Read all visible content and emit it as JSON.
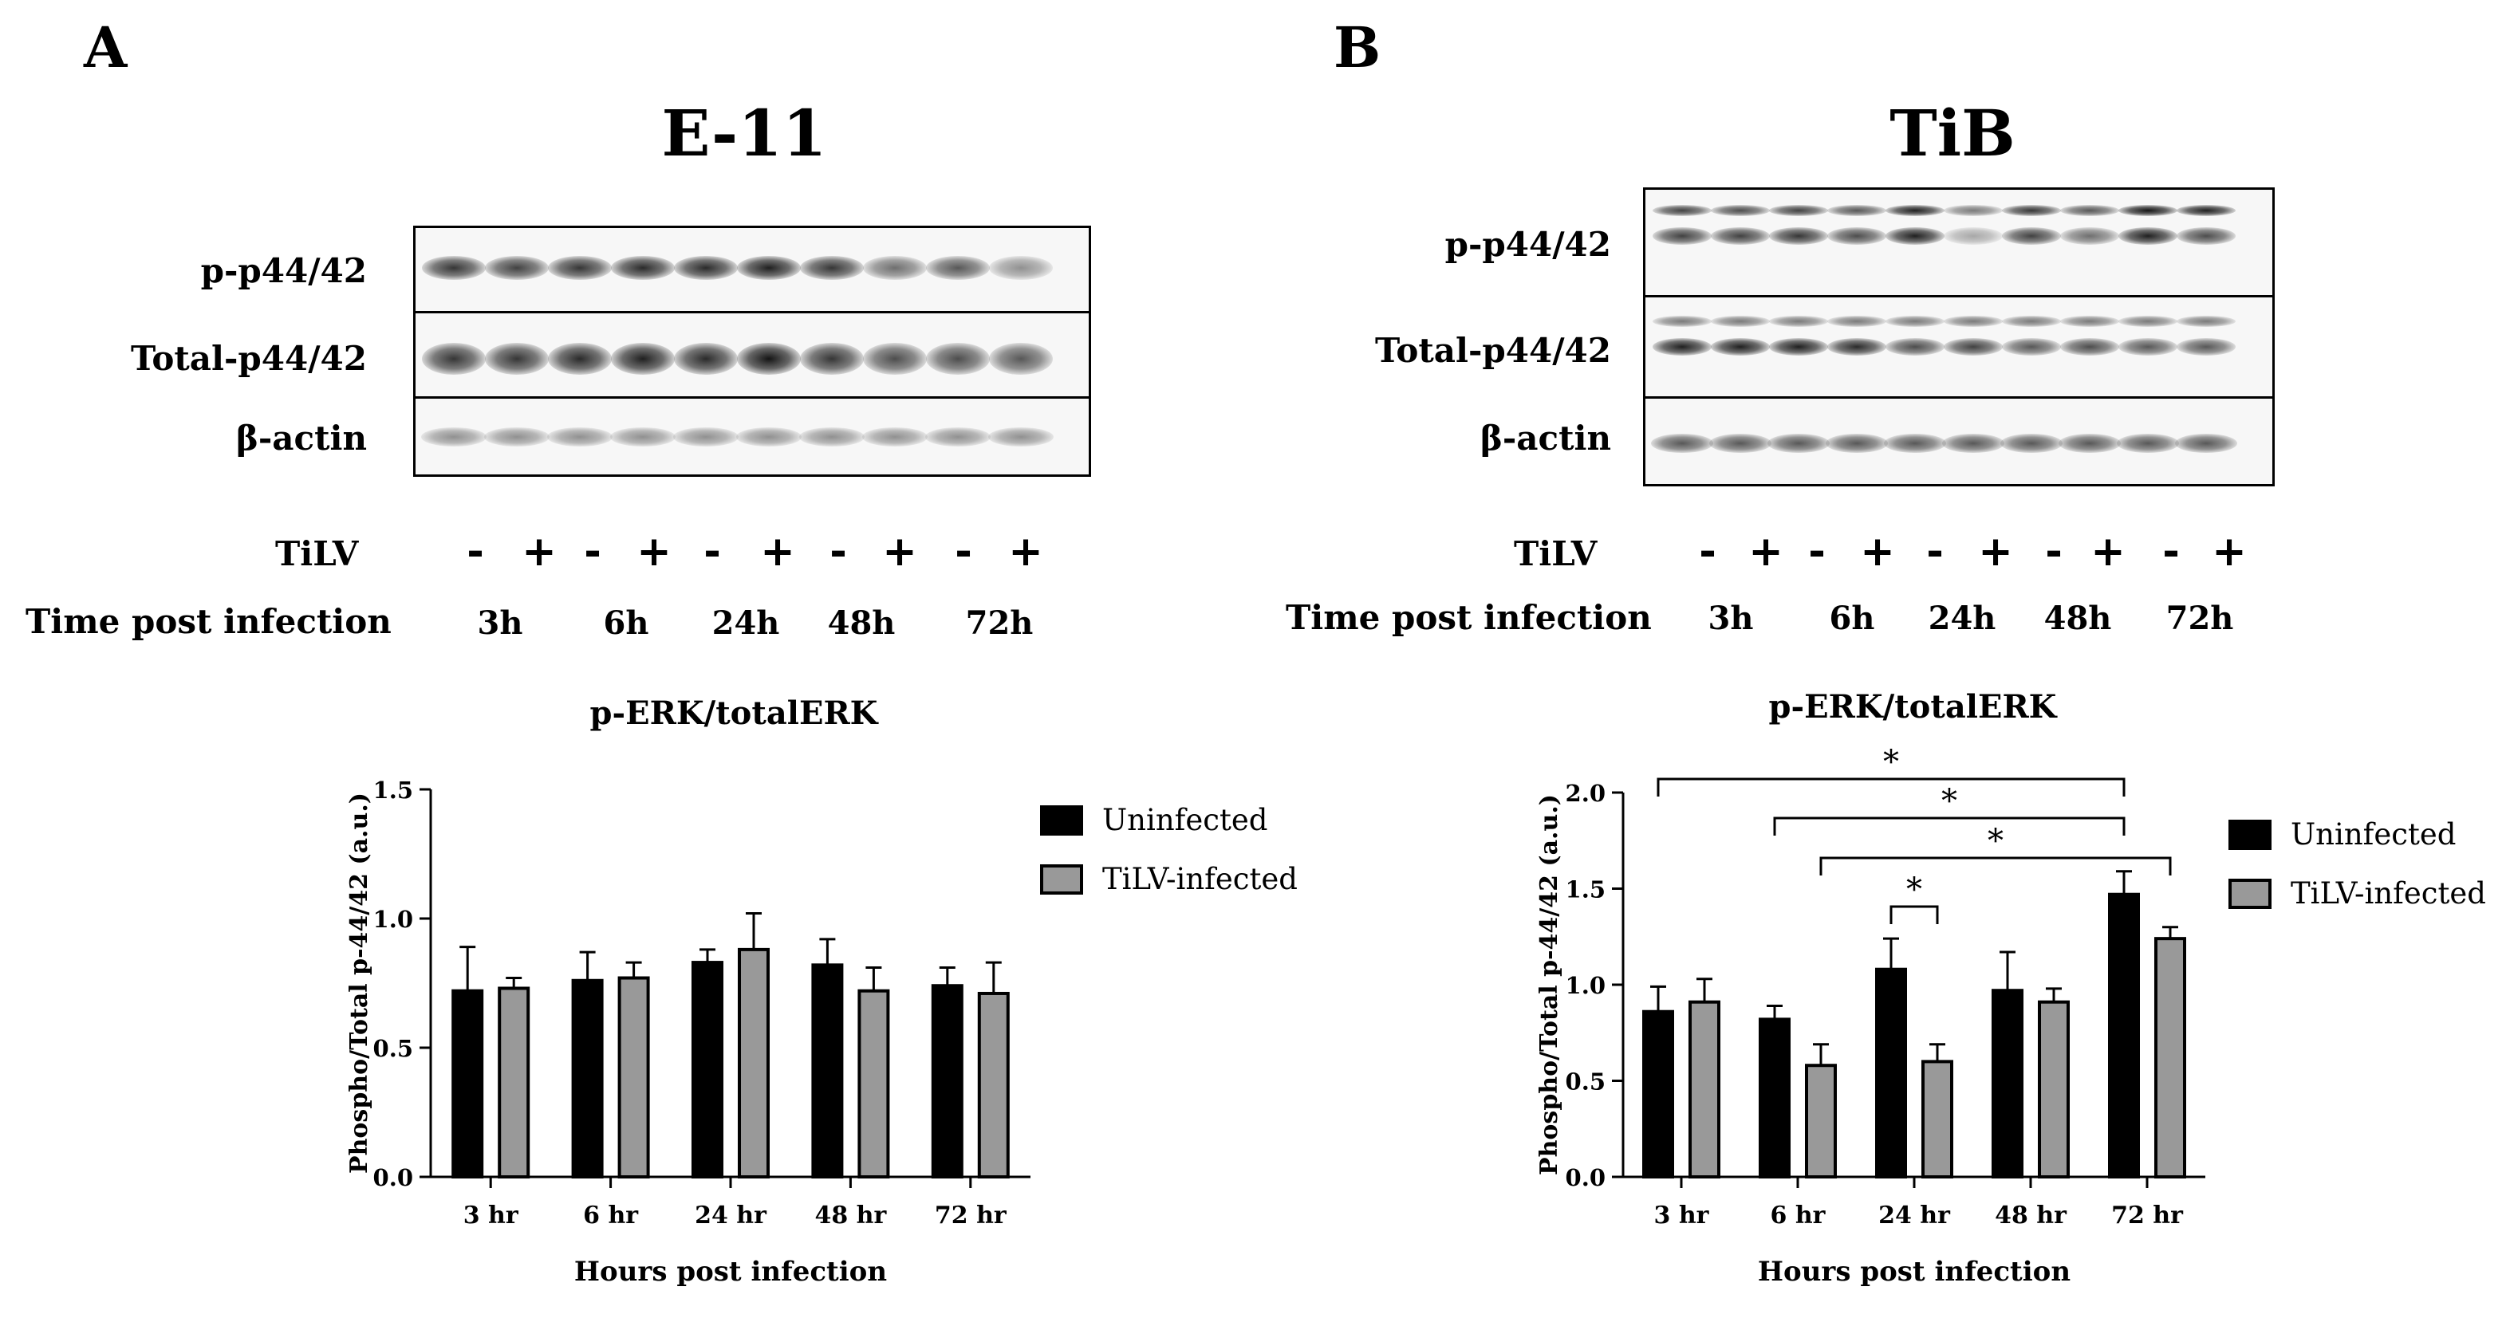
{
  "panels": {
    "a": {
      "letter": "A",
      "blot_title": "E-11",
      "rows": [
        "p-p44/42",
        "Total-p44/42",
        "β-actin"
      ],
      "tilv_label": "TiLV",
      "signs": [
        "-",
        "+",
        "-",
        "+",
        "-",
        "+",
        "-",
        "+",
        "-",
        "+"
      ],
      "time_label": "Time post infection",
      "times": [
        "3h",
        "6h",
        "24h",
        "48h",
        "72h"
      ]
    },
    "b": {
      "letter": "B",
      "blot_title": "TiB",
      "rows": [
        "p-p44/42",
        "Total-p44/42",
        "β-actin"
      ],
      "tilv_label": "TiLV",
      "signs": [
        "-",
        "+",
        "-",
        "+",
        "-",
        "+",
        "-",
        "+",
        "-",
        "+"
      ],
      "time_label": "Time post infection",
      "times": [
        "3h",
        "6h",
        "24h",
        "48h",
        "72h"
      ]
    }
  },
  "chart_data": [
    {
      "type": "bar",
      "panel": "A",
      "title": "p-ERK/totalERK",
      "xlabel": "Hours post infection",
      "ylabel": "Phospho/Total p-44/42 (a.u.)",
      "ylim": [
        0,
        1.5
      ],
      "yticks": [
        "0.0",
        "0.5",
        "1.0",
        "1.5"
      ],
      "yticks_values": [
        0,
        0.5,
        1.0,
        1.5
      ],
      "categories": [
        "3 hr",
        "6 hr",
        "24 hr",
        "48 hr",
        "72 hr"
      ],
      "series": [
        {
          "name": "Uninfected",
          "color": "#000000",
          "values": [
            0.72,
            0.76,
            0.83,
            0.82,
            0.74
          ],
          "errors": [
            0.17,
            0.11,
            0.05,
            0.1,
            0.07
          ]
        },
        {
          "name": "TiLV-infected",
          "color": "#999999",
          "values": [
            0.73,
            0.77,
            0.88,
            0.72,
            0.71
          ],
          "errors": [
            0.04,
            0.06,
            0.14,
            0.09,
            0.12
          ]
        }
      ],
      "significance": []
    },
    {
      "type": "bar",
      "panel": "B",
      "title": "p-ERK/totalERK",
      "xlabel": "Hours post infection",
      "ylabel": "Phospho/Total p-44/42 (a.u.)",
      "ylim": [
        0,
        2.0
      ],
      "yticks": [
        "0.0",
        "0.5",
        "1.0",
        "1.5",
        "2.0"
      ],
      "yticks_values": [
        0,
        0.5,
        1.0,
        1.5,
        2.0
      ],
      "categories": [
        "3 hr",
        "6 hr",
        "24 hr",
        "48 hr",
        "72 hr"
      ],
      "series": [
        {
          "name": "Uninfected",
          "color": "#000000",
          "values": [
            0.86,
            0.82,
            1.08,
            0.97,
            1.47
          ],
          "errors": [
            0.13,
            0.07,
            0.16,
            0.2,
            0.12
          ]
        },
        {
          "name": "TiLV-infected",
          "color": "#999999",
          "values": [
            0.91,
            0.58,
            0.6,
            0.91,
            1.24
          ],
          "errors": [
            0.12,
            0.11,
            0.09,
            0.07,
            0.06
          ]
        }
      ],
      "significance": [
        {
          "from": [
            0,
            0
          ],
          "to": [
            4,
            0
          ],
          "label": "*"
        },
        {
          "from": [
            1,
            0
          ],
          "to": [
            4,
            0
          ],
          "label": "*"
        },
        {
          "from": [
            1,
            1
          ],
          "to": [
            4,
            1
          ],
          "label": "*"
        },
        {
          "from": [
            2,
            0
          ],
          "to": [
            2,
            1
          ],
          "label": "*"
        }
      ]
    }
  ]
}
